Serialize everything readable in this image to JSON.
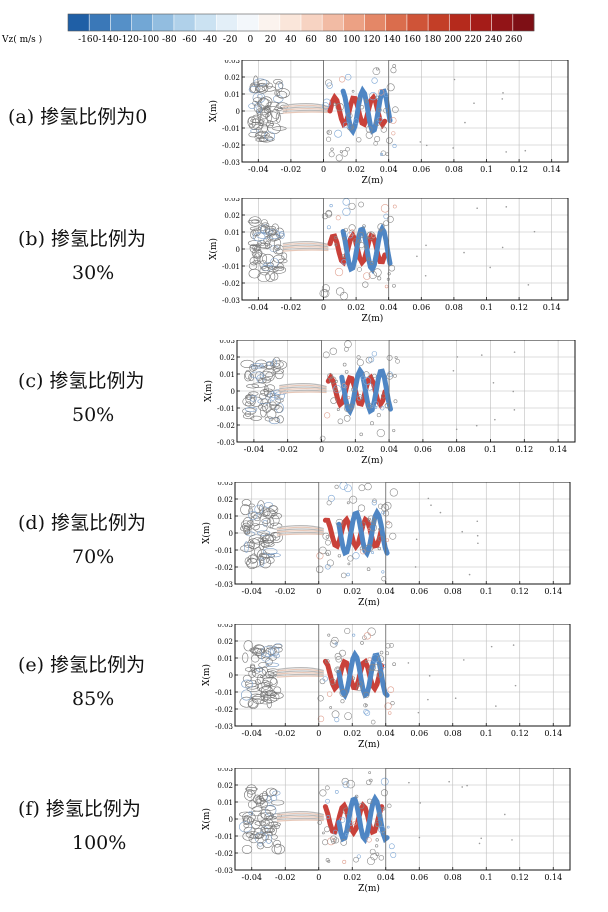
{
  "colorbar": {
    "label": "Vz( m/s )",
    "ticks": [
      "-160",
      "-140",
      "-120",
      "-100",
      "-80",
      "-60",
      "-40",
      "-20",
      "0",
      "20",
      "40",
      "60",
      "80",
      "100",
      "120",
      "140",
      "160",
      "180",
      "200",
      "220",
      "240",
      "260"
    ],
    "range": [
      -180,
      280
    ],
    "colors": [
      "#1f5fa6",
      "#3a78b8",
      "#5590c8",
      "#72a7d5",
      "#92bde0",
      "#b0d1ea",
      "#cbe2f2",
      "#e3eff8",
      "#f3f7fb",
      "#fbf3ee",
      "#fae6da",
      "#f7d3c2",
      "#f2bba4",
      "#eca184",
      "#e48767",
      "#da6d4d",
      "#cf5438",
      "#c33e27",
      "#b52a1c",
      "#a51c18",
      "#921417",
      "#7e0f15"
    ]
  },
  "chart_data": [
    {
      "type": "other",
      "label": "(a)  掺氢比例为0",
      "xlabel": "Z(m)",
      "ylabel": "X(m)",
      "xticks": [
        "-0.04",
        "-0.02",
        "0",
        "0.02",
        "0.04",
        "0.06",
        "0.08",
        "0.1",
        "0.12",
        "0.14"
      ],
      "yticks": [
        "0.03",
        "0.02",
        "0.01",
        "0",
        "-0.01",
        "-0.02",
        "-0.03"
      ],
      "xlim": [
        -0.05,
        0.15
      ],
      "ylim": [
        -0.03,
        0.03
      ],
      "grid": true
    },
    {
      "type": "other",
      "label": "(b)  掺氢比例为",
      "label2": "30%",
      "xlabel": "Z(m)",
      "ylabel": "X(m)",
      "xticks": [
        "-0.04",
        "-0.02",
        "0",
        "0.02",
        "0.04",
        "0.06",
        "0.08",
        "0.1",
        "0.12",
        "0.14"
      ],
      "yticks": [
        "0.03",
        "0.02",
        "0.01",
        "0",
        "-0.01",
        "-0.02",
        "-0.03"
      ],
      "xlim": [
        -0.05,
        0.15
      ],
      "ylim": [
        -0.03,
        0.03
      ],
      "grid": true
    },
    {
      "type": "other",
      "label": "(c)  掺氢比例为",
      "label2": "50%",
      "xlabel": "Z(m)",
      "ylabel": "X(m)",
      "xticks": [
        "-0.04",
        "-0.02",
        "0",
        "0.02",
        "0.04",
        "0.06",
        "0.08",
        "0.1",
        "0.12",
        "0.14"
      ],
      "yticks": [
        "0.03",
        "0.02",
        "0.01",
        "0",
        "-0.01",
        "-0.02",
        "-0.03"
      ],
      "xlim": [
        -0.05,
        0.15
      ],
      "ylim": [
        -0.03,
        0.03
      ],
      "grid": true
    },
    {
      "type": "other",
      "label": "(d)  掺氢比例为",
      "label2": "70%",
      "xlabel": "Z(m)",
      "ylabel": "X(m)",
      "xticks": [
        "-0.04",
        "-0.02",
        "0",
        "0.02",
        "0.04",
        "0.06",
        "0.08",
        "0.1",
        "0.12",
        "0.14"
      ],
      "yticks": [
        "0.03",
        "0.02",
        "0.01",
        "0",
        "-0.01",
        "-0.02",
        "-0.03"
      ],
      "xlim": [
        -0.05,
        0.15
      ],
      "ylim": [
        -0.03,
        0.03
      ],
      "grid": true
    },
    {
      "type": "other",
      "label": "(e)  掺氢比例为",
      "label2": "85%",
      "xlabel": "Z(m)",
      "ylabel": "X(m)",
      "xticks": [
        "-0.04",
        "-0.02",
        "0",
        "0.02",
        "0.04",
        "0.06",
        "0.08",
        "0.1",
        "0.12",
        "0.14"
      ],
      "yticks": [
        "0.03",
        "0.02",
        "0.01",
        "0",
        "-0.01",
        "-0.02",
        "-0.03"
      ],
      "xlim": [
        -0.05,
        0.15
      ],
      "ylim": [
        -0.03,
        0.03
      ],
      "grid": true
    },
    {
      "type": "other",
      "label": "(f)  掺氢比例为",
      "label2": "100%",
      "xlabel": "Z(m)",
      "ylabel": "X(m)",
      "xticks": [
        "-0.04",
        "-0.02",
        "0",
        "0.02",
        "0.04",
        "0.06",
        "0.08",
        "0.1",
        "0.12",
        "0.14"
      ],
      "yticks": [
        "0.03",
        "0.02",
        "0.01",
        "0",
        "-0.01",
        "-0.02",
        "-0.03"
      ],
      "xlim": [
        -0.05,
        0.15
      ],
      "ylim": [
        -0.03,
        0.03
      ],
      "grid": true
    }
  ]
}
